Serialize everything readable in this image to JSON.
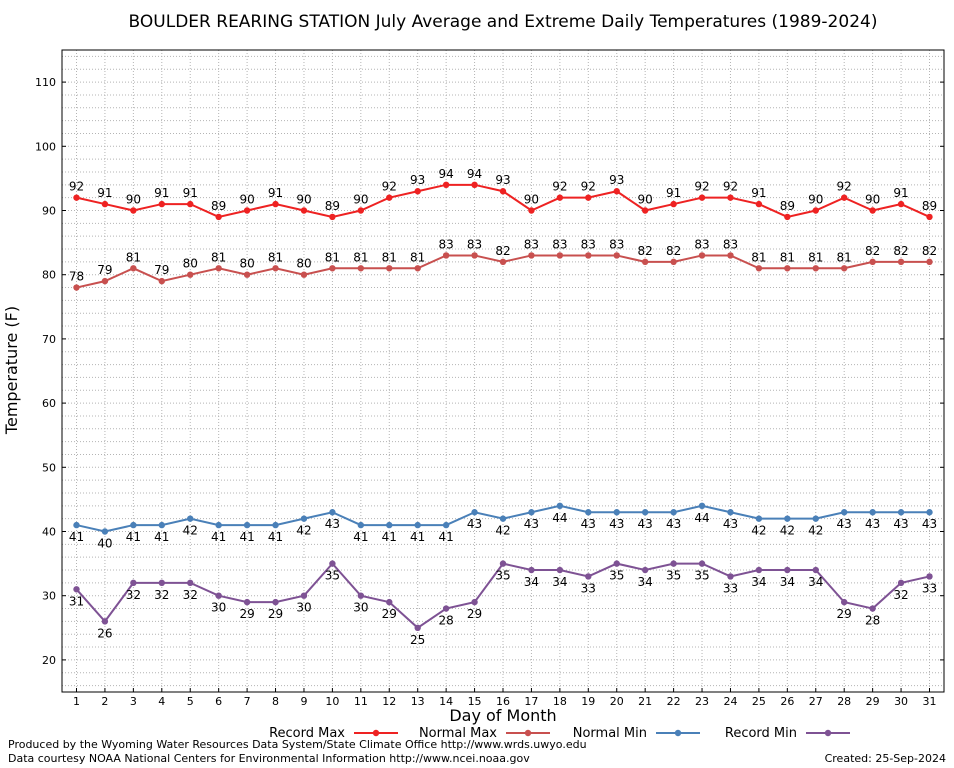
{
  "chart_data": {
    "type": "line",
    "title": "BOULDER REARING STATION July Average and Extreme Daily Temperatures (1989-2024)",
    "xlabel": "Day of Month",
    "ylabel": "Temperature (F)",
    "ylim": [
      15,
      115
    ],
    "yticks": [
      20,
      30,
      40,
      50,
      60,
      70,
      80,
      90,
      100,
      110
    ],
    "x": [
      1,
      2,
      3,
      4,
      5,
      6,
      7,
      8,
      9,
      10,
      11,
      12,
      13,
      14,
      15,
      16,
      17,
      18,
      19,
      20,
      21,
      22,
      23,
      24,
      25,
      26,
      27,
      28,
      29,
      30,
      31
    ],
    "grid": true,
    "legend_position": "bottom",
    "series": [
      {
        "name": "Record Max",
        "color": "#ee2222",
        "label_pos": "above",
        "values": [
          92,
          91,
          90,
          91,
          91,
          89,
          90,
          91,
          90,
          89,
          90,
          92,
          93,
          94,
          94,
          93,
          90,
          92,
          92,
          93,
          90,
          91,
          92,
          92,
          91,
          89,
          90,
          92,
          90,
          91,
          89
        ]
      },
      {
        "name": "Normal Max",
        "color": "#c8504f",
        "label_pos": "above",
        "values": [
          78,
          79,
          81,
          79,
          80,
          81,
          80,
          81,
          80,
          81,
          81,
          81,
          81,
          83,
          83,
          82,
          83,
          83,
          83,
          83,
          82,
          82,
          83,
          83,
          81,
          81,
          81,
          81,
          82,
          82,
          82
        ]
      },
      {
        "name": "Normal Min",
        "color": "#4a80b8",
        "label_pos": "below",
        "values": [
          41,
          40,
          41,
          41,
          42,
          41,
          41,
          41,
          42,
          43,
          41,
          41,
          41,
          41,
          43,
          42,
          43,
          44,
          43,
          43,
          43,
          43,
          44,
          43,
          42,
          42,
          42,
          43,
          43,
          43,
          43
        ]
      },
      {
        "name": "Record Min",
        "color": "#7e5294",
        "label_pos": "below",
        "values": [
          31,
          26,
          32,
          32,
          32,
          30,
          29,
          29,
          30,
          35,
          30,
          29,
          25,
          28,
          29,
          35,
          34,
          34,
          33,
          35,
          34,
          35,
          35,
          33,
          34,
          34,
          34,
          29,
          28,
          32,
          33
        ]
      }
    ]
  },
  "footer": {
    "credit_line1": "Produced by the Wyoming Water Resources Data System/State Climate Office http://www.wrds.uwyo.edu",
    "credit_line2": "Data courtesy NOAA National Centers for Environmental Information http://www.ncei.noaa.gov",
    "created": "Created:  25-Sep-2024"
  }
}
